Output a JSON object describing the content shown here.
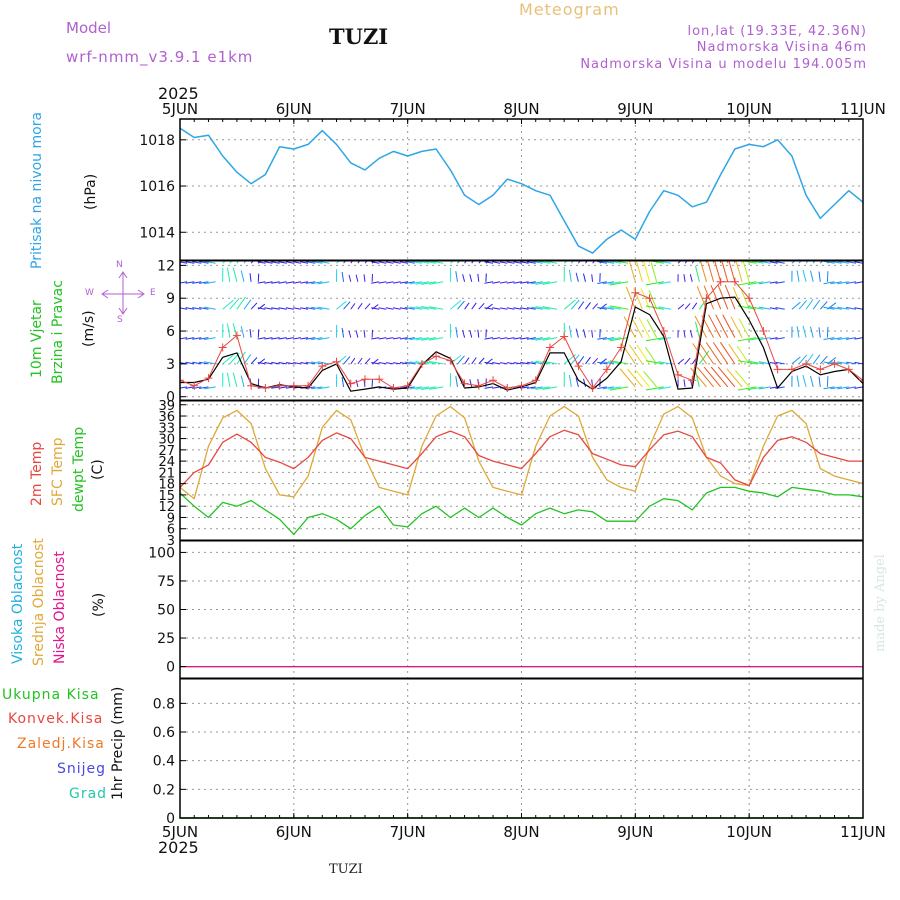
{
  "header": {
    "model_label": "Model",
    "model_name": "wrf-nmm_v3.9.1  e1km",
    "station": "TUZI",
    "title": "Meteogram",
    "lonlat": "lon,lat (19.33E, 42.36N)",
    "altitude": "Nadmorska Visina 46m",
    "model_altitude": "Nadmorska Visina u modelu 194.005m",
    "footer_station": "TUZI",
    "credit": "made by Angel"
  },
  "time_axis": {
    "year": "2025",
    "ticks": [
      "5JUN",
      "6JUN",
      "7JUN",
      "8JUN",
      "9JUN",
      "10JUN",
      "11JUN"
    ]
  },
  "panels": {
    "pressure": {
      "label": "Pritisak na nivou mora",
      "unit": "(hPa)",
      "ticks": [
        "1014",
        "1016",
        "1018"
      ]
    },
    "wind": {
      "labels": [
        "10m Vjetar",
        "Brzina i Pravac"
      ],
      "unit": "(m/s)",
      "ticks": [
        "0",
        "3",
        "6",
        "9",
        "12"
      ],
      "compass": {
        "n": "N",
        "w": "W",
        "e": "E",
        "s": "S"
      }
    },
    "temp": {
      "labels": [
        "2m Temp",
        "SFC Temp",
        "dewpt Temp"
      ],
      "unit": "(C)",
      "ticks": [
        "3",
        "6",
        "9",
        "12",
        "15",
        "18",
        "21",
        "24",
        "27",
        "30",
        "33",
        "36",
        "39"
      ]
    },
    "cloud": {
      "labels": [
        "Visoka Oblacnost",
        "Srednja Oblacnost",
        "Niska Oblacnost"
      ],
      "unit": "(%)",
      "ticks": [
        "0",
        "25",
        "50",
        "75",
        "100"
      ]
    },
    "precip": {
      "labels": [
        "Ukupna Kisa",
        "Konvek.Kisa",
        "Zaledj.Kisa",
        "Snijeg",
        "Grad"
      ],
      "unit": "1hr Precip (mm)",
      "ticks": [
        "0",
        "0.2",
        "0.4",
        "0.6",
        "0.8"
      ]
    }
  },
  "colors": {
    "pressure": "#2ea6e6",
    "temp2m": "#e8473f",
    "sfc": "#e0a838",
    "dewpt": "#22c322",
    "wind_line": "#000000",
    "gust": "#e8473f",
    "high_cloud": "#1fb0e0",
    "mid_cloud": "#e0a838",
    "low_cloud": "#e0148c",
    "snow": "#4848e0",
    "hail": "#22c8a8",
    "conv": "#e8473f",
    "freezing": "#f07828",
    "title": "#e8c078",
    "model": "#b060d0",
    "info": "#b060d0"
  },
  "chart_data": [
    {
      "type": "line",
      "title": "",
      "ylabel": "Pritisak na nivou mora (hPa)",
      "ylim": [
        1012.8,
        1018.9
      ],
      "series": [
        {
          "name": "Pritisak na nivou mora",
          "x": [
            0,
            3,
            6,
            9,
            12,
            15,
            18,
            21,
            24,
            27,
            30,
            33,
            36,
            39,
            42,
            45,
            48,
            51,
            54,
            57,
            60,
            63,
            66,
            69,
            72,
            75,
            78,
            81,
            84,
            87,
            90,
            93,
            96,
            99,
            102,
            105,
            108,
            111,
            114,
            117,
            120,
            123,
            126,
            129,
            132,
            135,
            138,
            141,
            144
          ],
          "values": [
            1018.5,
            1018.1,
            1018.2,
            1017.3,
            1016.6,
            1016.1,
            1016.5,
            1017.7,
            1017.6,
            1017.8,
            1018.4,
            1017.8,
            1017.0,
            1016.7,
            1017.2,
            1017.5,
            1017.3,
            1017.5,
            1017.6,
            1016.7,
            1015.6,
            1015.2,
            1015.6,
            1016.3,
            1016.1,
            1015.8,
            1015.6,
            1014.5,
            1013.4,
            1013.1,
            1013.7,
            1014.1,
            1013.7,
            1014.9,
            1015.8,
            1015.6,
            1015.1,
            1015.3,
            1016.5,
            1017.6,
            1017.8,
            1017.7,
            1018.0,
            1017.3,
            1015.6,
            1014.6,
            1015.2,
            1015.8,
            1015.3
          ]
        }
      ]
    },
    {
      "type": "line",
      "title": "",
      "ylabel": "10m Vjetar Brzina i Pravac (m/s)",
      "ylim": [
        -0.3,
        12.4
      ],
      "series": [
        {
          "name": "10m Vjetar",
          "x": [
            0,
            3,
            6,
            9,
            12,
            15,
            18,
            21,
            24,
            27,
            30,
            33,
            36,
            39,
            42,
            45,
            48,
            51,
            54,
            57,
            60,
            63,
            66,
            69,
            72,
            75,
            78,
            81,
            84,
            87,
            90,
            93,
            96,
            99,
            102,
            105,
            108,
            111,
            114,
            117,
            120,
            123,
            126,
            129,
            132,
            135,
            138,
            141,
            144
          ],
          "values": [
            1.3,
            1.3,
            1.6,
            3.6,
            4.0,
            1.2,
            0.8,
            1.1,
            0.9,
            0.8,
            2.4,
            3.0,
            0.5,
            0.7,
            0.9,
            0.7,
            0.8,
            2.9,
            4.1,
            3.5,
            0.8,
            0.9,
            1.2,
            0.6,
            0.9,
            1.3,
            4.0,
            4.0,
            1.5,
            0.7,
            1.7,
            3.2,
            8.2,
            7.5,
            5.5,
            0.7,
            0.8,
            8.5,
            9.0,
            9.1,
            7.0,
            4.5,
            0.8,
            2.3,
            2.8,
            2.0,
            2.3,
            2.5,
            1.2
          ]
        },
        {
          "name": "Udari",
          "x": [
            0,
            3,
            6,
            9,
            12,
            15,
            18,
            21,
            24,
            27,
            30,
            33,
            36,
            39,
            42,
            45,
            48,
            51,
            54,
            57,
            60,
            63,
            66,
            69,
            72,
            75,
            78,
            81,
            84,
            87,
            90,
            93,
            96,
            99,
            102,
            105,
            108,
            111,
            114,
            117,
            120,
            123,
            126,
            129,
            132,
            135,
            138,
            141,
            144
          ],
          "values": [
            1.5,
            1.0,
            1.7,
            4.5,
            5.6,
            1.0,
            0.8,
            1.0,
            1.0,
            1.0,
            2.8,
            3.2,
            1.2,
            1.6,
            1.6,
            0.8,
            1.0,
            3.0,
            3.7,
            3.3,
            1.2,
            1.0,
            1.5,
            0.8,
            1.0,
            1.5,
            4.5,
            5.5,
            2.8,
            0.8,
            2.5,
            4.5,
            9.5,
            9.0,
            6.0,
            2.0,
            1.5,
            9.0,
            10.5,
            10.5,
            9.0,
            6.0,
            2.5,
            2.5,
            3.0,
            2.5,
            3.0,
            2.5,
            1.5
          ]
        }
      ]
    },
    {
      "type": "line",
      "title": "",
      "ylabel": "(C)",
      "ylim": [
        3,
        40
      ],
      "series": [
        {
          "name": "2m Temp",
          "x": [
            0,
            3,
            6,
            9,
            12,
            15,
            18,
            21,
            24,
            27,
            30,
            33,
            36,
            39,
            42,
            45,
            48,
            51,
            54,
            57,
            60,
            63,
            66,
            69,
            72,
            75,
            78,
            81,
            84,
            87,
            90,
            93,
            96,
            99,
            102,
            105,
            108,
            111,
            114,
            117,
            120,
            123,
            126,
            129,
            132,
            135,
            138,
            141,
            144
          ],
          "values": [
            17.0,
            21.0,
            23.0,
            29.0,
            31.2,
            29.0,
            25.0,
            23.7,
            22.0,
            25.0,
            29.5,
            31.5,
            30.0,
            25.0,
            24.0,
            23.0,
            22.0,
            26.0,
            30.5,
            32.0,
            30.5,
            25.5,
            24.0,
            23.0,
            22.0,
            26.0,
            30.5,
            32.2,
            31.0,
            26.0,
            24.5,
            23.0,
            22.5,
            27.0,
            31.0,
            32.0,
            30.5,
            25.0,
            23.5,
            19.0,
            17.5,
            25.0,
            29.5,
            30.5,
            29.0,
            26.0,
            25.0,
            24.0,
            24.0
          ]
        },
        {
          "name": "SFC Temp",
          "x": [
            0,
            3,
            6,
            9,
            12,
            15,
            18,
            21,
            24,
            27,
            30,
            33,
            36,
            39,
            42,
            45,
            48,
            51,
            54,
            57,
            60,
            63,
            66,
            69,
            72,
            75,
            78,
            81,
            84,
            87,
            90,
            93,
            96,
            99,
            102,
            105,
            108,
            111,
            114,
            117,
            120,
            123,
            126,
            129,
            132,
            135,
            138,
            141,
            144
          ],
          "values": [
            17.0,
            14.0,
            28.0,
            35.5,
            37.5,
            34.0,
            22.0,
            15.0,
            14.5,
            20.0,
            33.0,
            37.5,
            35.0,
            25.0,
            17.0,
            16.0,
            15.0,
            28.0,
            36.0,
            38.5,
            35.5,
            24.0,
            17.0,
            16.0,
            15.0,
            28.0,
            36.0,
            38.5,
            36.0,
            25.0,
            19.0,
            17.0,
            16.0,
            28.0,
            36.5,
            38.5,
            35.5,
            25.0,
            20.0,
            18.0,
            17.5,
            28.0,
            36.0,
            37.5,
            34.0,
            22.0,
            20.0,
            19.0,
            18.0
          ]
        },
        {
          "name": "dewpt Temp",
          "x": [
            0,
            3,
            6,
            9,
            12,
            15,
            18,
            21,
            24,
            27,
            30,
            33,
            36,
            39,
            42,
            45,
            48,
            51,
            54,
            57,
            60,
            63,
            66,
            69,
            72,
            75,
            78,
            81,
            84,
            87,
            90,
            93,
            96,
            99,
            102,
            105,
            108,
            111,
            114,
            117,
            120,
            123,
            126,
            129,
            132,
            135,
            138,
            141,
            144
          ],
          "values": [
            15.5,
            12.0,
            9.0,
            13.0,
            12.0,
            13.5,
            11.0,
            8.5,
            4.5,
            9.0,
            10.0,
            8.5,
            6.0,
            9.5,
            12.0,
            7.0,
            6.5,
            10.0,
            12.0,
            9.0,
            11.5,
            9.0,
            11.5,
            9.0,
            7.0,
            10.0,
            11.5,
            10.0,
            11.0,
            10.5,
            8.0,
            8.0,
            8.0,
            12.0,
            14.0,
            13.5,
            11.0,
            15.5,
            17.0,
            17.0,
            16.0,
            15.5,
            14.5,
            17.0,
            16.5,
            16.0,
            15.0,
            15.0,
            14.5
          ]
        }
      ]
    },
    {
      "type": "line",
      "title": "",
      "ylabel": "(%)",
      "ylim": [
        -10,
        110
      ],
      "series": [
        {
          "name": "Visoka Oblacnost",
          "x": [
            0,
            144
          ],
          "values": [
            0,
            0
          ]
        },
        {
          "name": "Srednja Oblacnost",
          "x": [
            0,
            144
          ],
          "values": [
            0,
            0
          ]
        },
        {
          "name": "Niska Oblacnost",
          "x": [
            0,
            144
          ],
          "values": [
            0,
            0
          ]
        }
      ]
    },
    {
      "type": "bar",
      "title": "",
      "ylabel": "1hr Precip (mm)",
      "ylim": [
        0,
        0.97
      ],
      "series": [
        {
          "name": "Ukupna Kisa",
          "x": [
            0,
            144
          ],
          "values": [
            0,
            0
          ]
        },
        {
          "name": "Konvek.Kisa",
          "x": [
            0,
            144
          ],
          "values": [
            0,
            0
          ]
        },
        {
          "name": "Zaledj.Kisa",
          "x": [
            0,
            144
          ],
          "values": [
            0,
            0
          ]
        },
        {
          "name": "Snijeg",
          "x": [
            0,
            144
          ],
          "values": [
            0,
            0
          ]
        },
        {
          "name": "Grad",
          "x": [
            0,
            144
          ],
          "values": [
            0,
            0
          ]
        }
      ]
    }
  ]
}
